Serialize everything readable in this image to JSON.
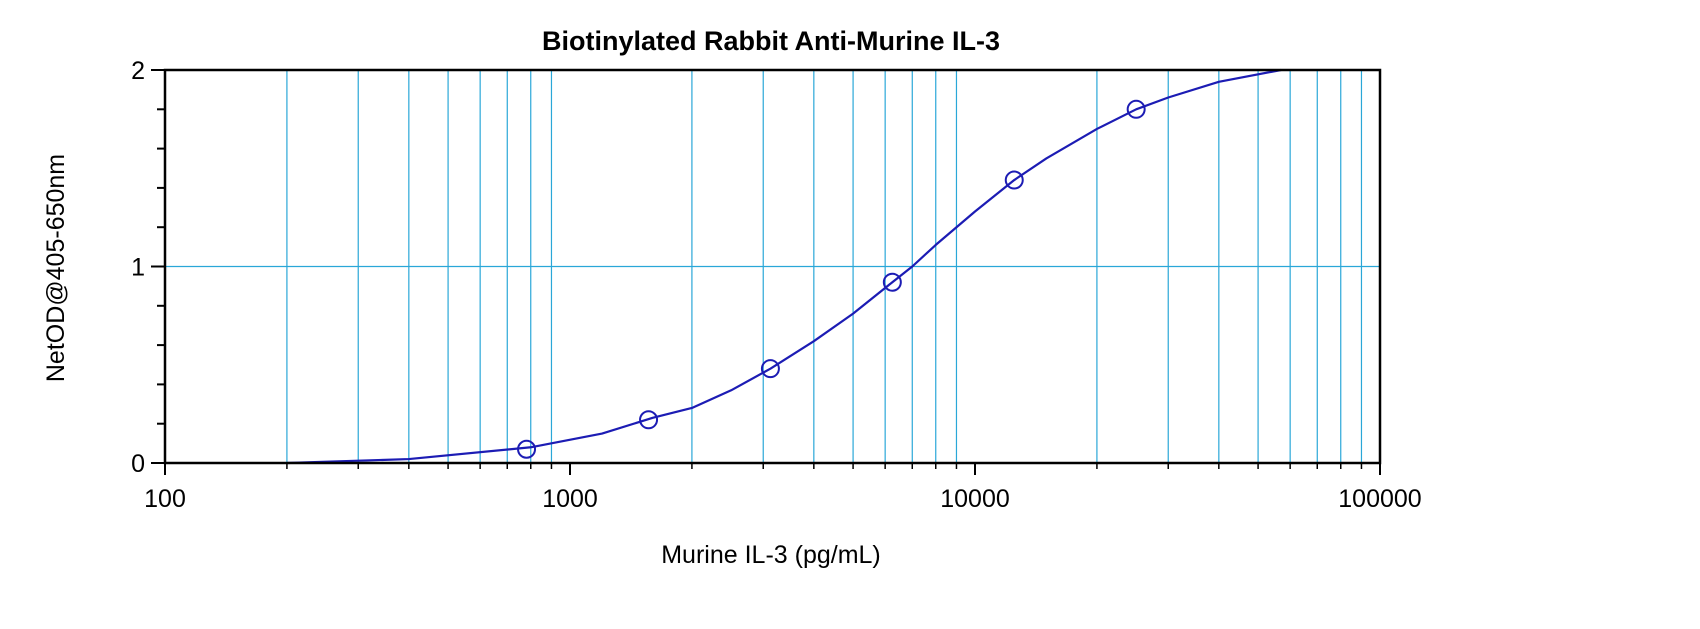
{
  "chart_data": {
    "type": "scatter",
    "title": "Biotinylated Rabbit Anti-Murine IL-3",
    "xlabel": "Murine IL-3 (pg/mL)",
    "ylabel": "NetOD@405-650nm",
    "x_scale": "log",
    "xlim": [
      100,
      100000
    ],
    "ylim": [
      0,
      2
    ],
    "x_tick_labels": [
      "100",
      "1000",
      "10000",
      "100000"
    ],
    "y_tick_labels": [
      "0",
      "1",
      "2"
    ],
    "grid": true,
    "legend": "none",
    "series": [
      {
        "points": [
          {
            "x": 781,
            "y": 0.07
          },
          {
            "x": 1563,
            "y": 0.22
          },
          {
            "x": 3125,
            "y": 0.48
          },
          {
            "x": 6250,
            "y": 0.92
          },
          {
            "x": 12500,
            "y": 1.44
          },
          {
            "x": 25000,
            "y": 1.8
          }
        ]
      }
    ],
    "fit_curve": {
      "points": [
        {
          "x": 200,
          "y": 0.0
        },
        {
          "x": 400,
          "y": 0.02
        },
        {
          "x": 800,
          "y": 0.08
        },
        {
          "x": 1200,
          "y": 0.15
        },
        {
          "x": 1600,
          "y": 0.23
        },
        {
          "x": 2000,
          "y": 0.28
        },
        {
          "x": 2500,
          "y": 0.37
        },
        {
          "x": 3125,
          "y": 0.48
        },
        {
          "x": 4000,
          "y": 0.62
        },
        {
          "x": 5000,
          "y": 0.76
        },
        {
          "x": 6250,
          "y": 0.92
        },
        {
          "x": 7000,
          "y": 1.0
        },
        {
          "x": 8000,
          "y": 1.11
        },
        {
          "x": 10000,
          "y": 1.28
        },
        {
          "x": 12500,
          "y": 1.44
        },
        {
          "x": 15000,
          "y": 1.55
        },
        {
          "x": 20000,
          "y": 1.7
        },
        {
          "x": 25000,
          "y": 1.8
        },
        {
          "x": 30000,
          "y": 1.86
        },
        {
          "x": 40000,
          "y": 1.94
        },
        {
          "x": 57000,
          "y": 2.0
        }
      ]
    },
    "colors": {
      "series": "#1c1cb4",
      "grid": "#2aa7d8",
      "axis": "#000000"
    }
  }
}
